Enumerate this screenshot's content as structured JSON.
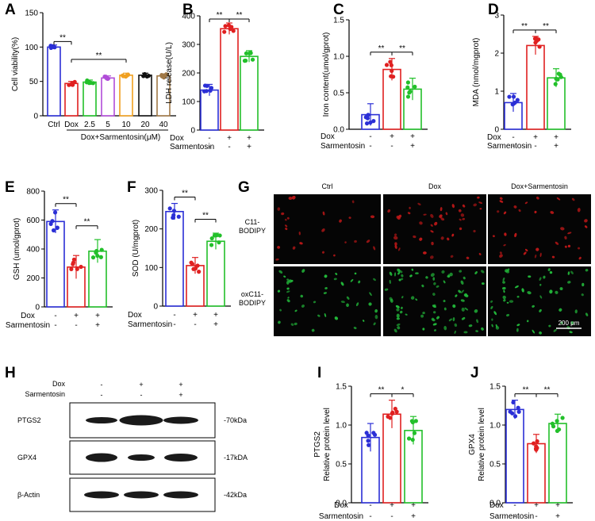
{
  "colors": {
    "blue": "#2b2fd6",
    "red": "#e02020",
    "green": "#22c02a",
    "purple": "#b04cd8",
    "orange": "#f0a020",
    "black": "#111111",
    "brown": "#a07846"
  },
  "chart_data": [
    {
      "panel": "A",
      "type": "bar",
      "ylabel": "Cell viability(%)",
      "ylim": [
        0,
        150
      ],
      "yticks": [
        "0",
        "50",
        "100",
        "150"
      ],
      "categories": [
        "Ctrl",
        "Dox",
        "2.5",
        "5",
        "10",
        "20",
        "40"
      ],
      "values": [
        100,
        47,
        49,
        55,
        59,
        59,
        58
      ],
      "group_label": "Dox+Sarmentosin(μM)",
      "annotations": [
        "**",
        "**"
      ]
    },
    {
      "panel": "B",
      "type": "bar",
      "ylabel": "LDH release(U/L)",
      "ylim": [
        0,
        400
      ],
      "yticks": [
        "0",
        "100",
        "200",
        "300",
        "400"
      ],
      "values": [
        140,
        355,
        258
      ],
      "annotations": [
        "**",
        "**"
      ]
    },
    {
      "panel": "C",
      "type": "bar",
      "ylabel": "Iron content(umol/gprot)",
      "ylim": [
        0,
        1.5
      ],
      "yticks": [
        "0.0",
        "0.5",
        "1.0",
        "1.5"
      ],
      "values": [
        0.2,
        0.82,
        0.55
      ],
      "annotations": [
        "**",
        "**"
      ]
    },
    {
      "panel": "D",
      "type": "bar",
      "ylabel": "MDA (nmol/mgprot)",
      "ylim": [
        0,
        3
      ],
      "yticks": [
        "0",
        "1",
        "2",
        "3"
      ],
      "values": [
        0.7,
        2.2,
        1.35
      ],
      "annotations": [
        "**",
        "**"
      ]
    },
    {
      "panel": "E",
      "type": "bar",
      "ylabel": "GSH  (umol/gprot)",
      "ylim": [
        0,
        800
      ],
      "yticks": [
        "0",
        "200",
        "400",
        "600",
        "800"
      ],
      "values": [
        590,
        275,
        385
      ],
      "annotations": [
        "**",
        "**"
      ]
    },
    {
      "panel": "F",
      "type": "bar",
      "ylabel": "SOD (U/mgprot)",
      "ylim": [
        0,
        300
      ],
      "yticks": [
        "0",
        "100",
        "200",
        "300"
      ],
      "values": [
        245,
        105,
        168
      ],
      "annotations": [
        "**",
        "**"
      ]
    },
    {
      "panel": "I",
      "type": "bar",
      "ylabel": "PTGS2\nRelative protein level",
      "ylim": [
        0,
        1.5
      ],
      "yticks": [
        "0.0",
        "0.5",
        "1.0",
        "1.5"
      ],
      "values": [
        0.84,
        1.14,
        0.93
      ],
      "annotations": [
        "**",
        "*"
      ]
    },
    {
      "panel": "J",
      "type": "bar",
      "ylabel": "GPX4\nRelative protein level",
      "ylim": [
        0,
        1.5
      ],
      "yticks": [
        "0.0",
        "0.5",
        "1.0",
        "1.5"
      ],
      "values": [
        1.2,
        0.76,
        1.02
      ],
      "annotations": [
        "**",
        "**"
      ]
    }
  ],
  "treatment_rows": {
    "dox_label": "Dox",
    "sar_label": "Sarmentosin",
    "dox": [
      "-",
      "+",
      "+"
    ],
    "sar": [
      "-",
      "-",
      "+"
    ]
  },
  "panel_labels": [
    "A",
    "B",
    "C",
    "D",
    "E",
    "F",
    "G",
    "H",
    "I",
    "J"
  ],
  "panel_g": {
    "columns": [
      "Ctrl",
      "Dox",
      "Dox+Sarmentosin"
    ],
    "rows": [
      "C11-\nBODIPY",
      "oxC11-\nBODIPY"
    ],
    "scale_bar": "200 μm"
  },
  "panel_h": {
    "dox_label": "Dox",
    "sar_label": "Sarmentosin",
    "dox": [
      "-",
      "+",
      "+"
    ],
    "sar": [
      "-",
      "-",
      "+"
    ],
    "bands": [
      {
        "name": "PTGS2",
        "size": "-70kDa"
      },
      {
        "name": "GPX4",
        "size": "-17kDA"
      },
      {
        "name": "β-Actin",
        "size": "-42kDa"
      }
    ]
  }
}
